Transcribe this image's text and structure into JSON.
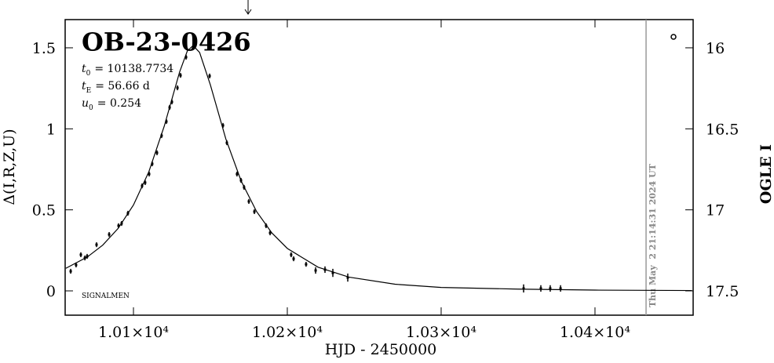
{
  "chart_data": {
    "type": "lightcurve",
    "title": "OB-23-0426",
    "parameters": [
      {
        "symbol": "t",
        "sub": "0",
        "text": "= 10138.7734"
      },
      {
        "symbol": "t",
        "sub": "E",
        "text": "= 56.66 d"
      },
      {
        "symbol": "u",
        "sub": "0",
        "text": "= 0.254"
      }
    ],
    "credit": "SIGNALMEN",
    "timestamp": "Thu May  2 21:14:31 2024 UT",
    "now_line_x": 10433.2,
    "event_arrow_x": 10174.5,
    "xlabel": "HJD - 2450000",
    "ylabel": "Δ(I,R,Z,U)",
    "y2label": "OGLE I",
    "xlim": [
      10055.6,
      10463.8
    ],
    "ylim": [
      -0.15,
      1.674
    ],
    "y2lim": [
      17.65,
      15.826
    ],
    "xticks": [
      {
        "value": 10100,
        "label": "1.01×10⁴"
      },
      {
        "value": 10200,
        "label": "1.02×10⁴"
      },
      {
        "value": 10300,
        "label": "1.03×10⁴"
      },
      {
        "value": 10400,
        "label": "1.04×10⁴"
      }
    ],
    "yticks": [
      0,
      0.5,
      1,
      1.5
    ],
    "y2ticks": [
      16,
      16.5,
      17,
      17.5
    ],
    "series": [
      {
        "type": "line",
        "color": "#000000",
        "x": [
          10056,
          10070,
          10080,
          10090,
          10100,
          10110,
          10120,
          10130,
          10135,
          10138.77,
          10143,
          10150,
          10160,
          10170,
          10180,
          10190,
          10200,
          10220,
          10240,
          10270,
          10300,
          10350,
          10400,
          10463
        ],
        "values": [
          0.139,
          0.209,
          0.282,
          0.385,
          0.53,
          0.735,
          1.016,
          1.351,
          1.48,
          1.514,
          1.471,
          1.271,
          0.939,
          0.678,
          0.49,
          0.357,
          0.262,
          0.146,
          0.085,
          0.041,
          0.021,
          0.011,
          0.0047,
          0.002
        ]
      },
      {
        "type": "errorbar",
        "color": "#000000",
        "x": [
          10059.2,
          10062.7,
          10065.8,
          10068.4,
          10069.9,
          10076.0,
          10084.2,
          10090.3,
          10092.3,
          10096.4,
          10105.6,
          10107.6,
          10110.2,
          10112.2,
          10115.3,
          10118.3,
          10121.4,
          10123.5,
          10125.0,
          10128.6,
          10130.6,
          10134.2,
          10149.5,
          10158.2,
          10160.7,
          10167.3,
          10169.9,
          10171.9,
          10175.0,
          10178.6,
          10186.2,
          10188.8,
          10202.5,
          10204.1,
          10212.2,
          10218.4,
          10224.5,
          10229.6,
          10239.3,
          10353.6,
          10364.8,
          10370.9,
          10377.6
        ],
        "values": [
          0.121,
          0.16,
          0.223,
          0.203,
          0.213,
          0.285,
          0.348,
          0.402,
          0.416,
          0.479,
          0.648,
          0.668,
          0.721,
          0.784,
          0.852,
          0.958,
          1.045,
          1.132,
          1.166,
          1.253,
          1.33,
          1.442,
          1.326,
          1.021,
          0.914,
          0.721,
          0.682,
          0.639,
          0.552,
          0.489,
          0.402,
          0.358,
          0.223,
          0.198,
          0.164,
          0.126,
          0.131,
          0.111,
          0.082,
          0.015,
          0.015,
          0.015,
          0.015
        ],
        "errors": [
          0.015,
          0.015,
          0.015,
          0.015,
          0.015,
          0.015,
          0.015,
          0.015,
          0.015,
          0.015,
          0.015,
          0.015,
          0.015,
          0.015,
          0.015,
          0.015,
          0.015,
          0.015,
          0.015,
          0.015,
          0.015,
          0.015,
          0.015,
          0.015,
          0.015,
          0.015,
          0.015,
          0.015,
          0.015,
          0.015,
          0.015,
          0.015,
          0.015,
          0.015,
          0.015,
          0.02,
          0.02,
          0.025,
          0.025,
          0.025,
          0.02,
          0.02,
          0.02
        ]
      }
    ]
  }
}
